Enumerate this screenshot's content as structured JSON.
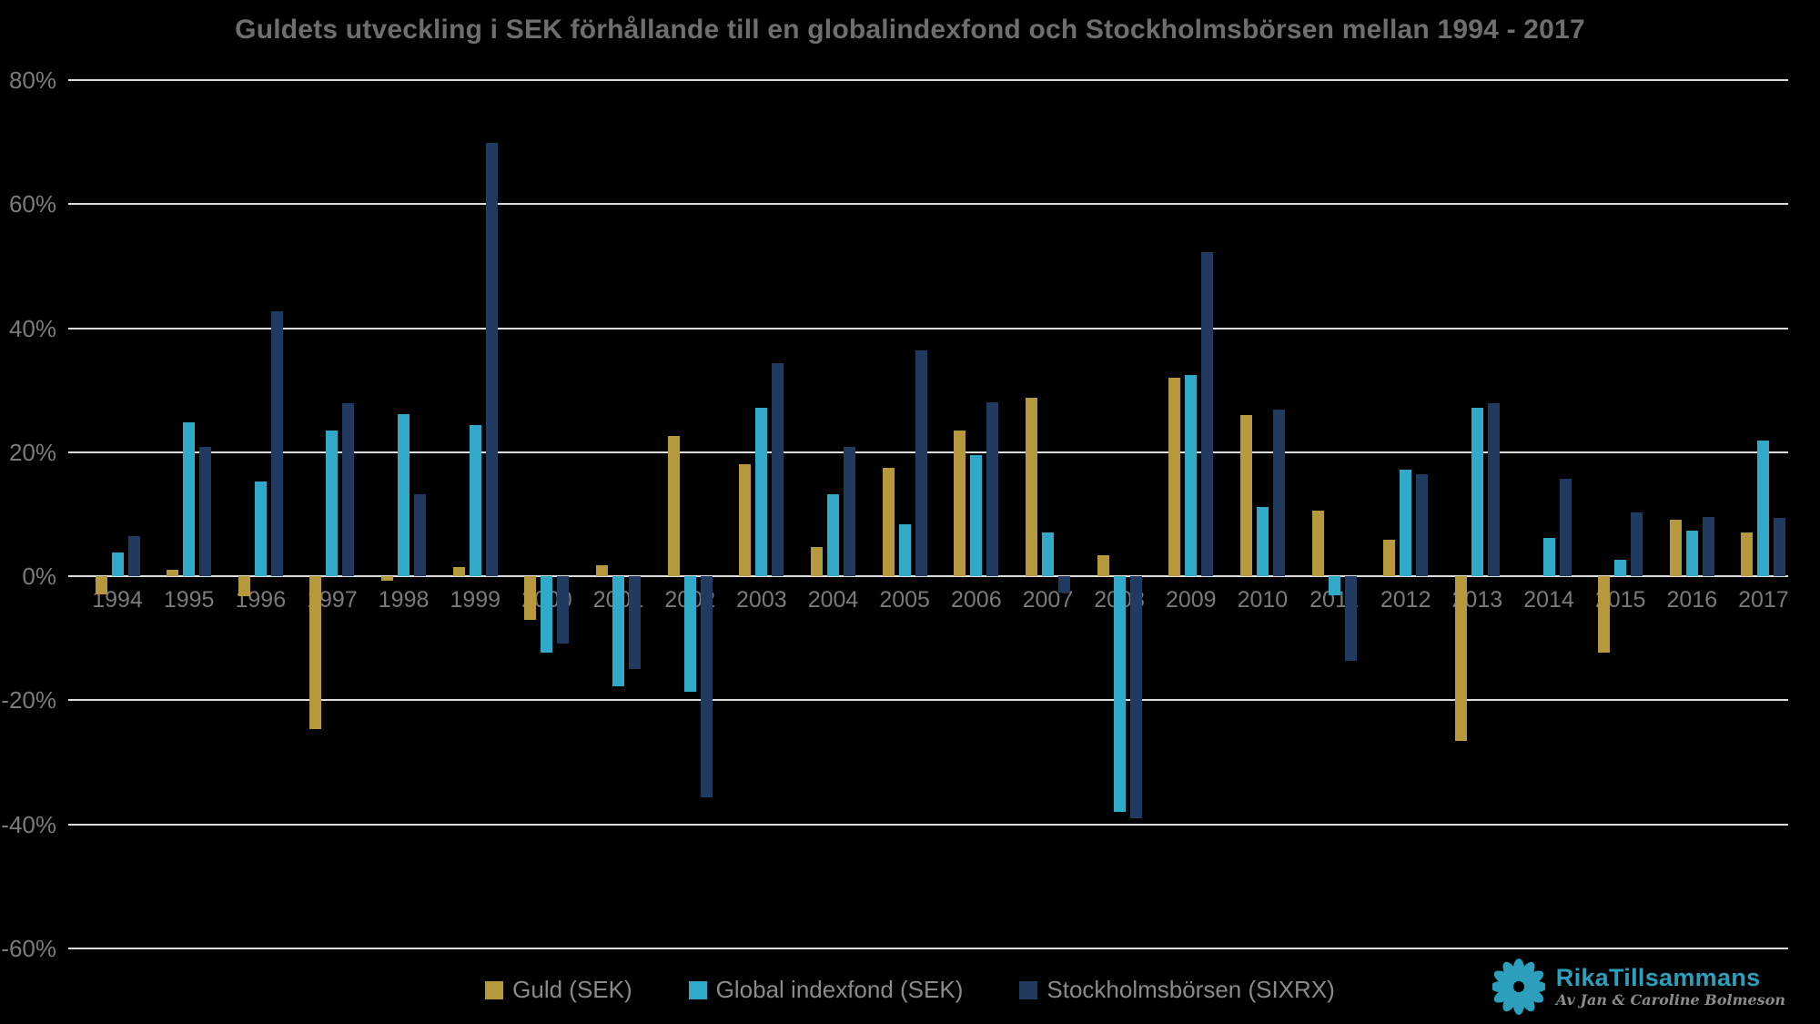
{
  "title": "Guldets utveckling i SEK förhållande till en globalindexfond och Stockholmsbörsen mellan 1994 - 2017",
  "colors": {
    "gold": "#B5993C",
    "cyan": "#31A9C9",
    "navy": "#203A60",
    "gridline": "#DEDEDE",
    "title_text": "#6E6E6E",
    "axis_text": "#7A7A7A",
    "legend_text": "#8A8A8A",
    "background": "#000000",
    "logo_teal": "#2B9FBC"
  },
  "chart_data": {
    "type": "bar",
    "categories": [
      "1994",
      "1995",
      "1996",
      "1997",
      "1998",
      "1999",
      "2000",
      "2001",
      "2002",
      "2003",
      "2004",
      "2005",
      "2006",
      "2007",
      "2008",
      "2009",
      "2010",
      "2011",
      "2012",
      "2013",
      "2014",
      "2015",
      "2016",
      "2017"
    ],
    "series": [
      {
        "name": "Guld (SEK)",
        "color_key": "gold",
        "values": [
          -2.9,
          1.0,
          -3.2,
          -24.7,
          -0.7,
          1.4,
          -7.0,
          1.7,
          22.6,
          18.1,
          4.7,
          17.5,
          23.5,
          28.8,
          3.4,
          32.0,
          26.0,
          10.5,
          5.9,
          -26.6,
          0.0,
          -12.3,
          9.1,
          7.0
        ]
      },
      {
        "name": "Global indexfond (SEK)",
        "color_key": "cyan",
        "values": [
          3.8,
          24.8,
          15.2,
          23.5,
          26.1,
          24.3,
          -12.4,
          -17.7,
          -18.6,
          27.1,
          13.2,
          8.4,
          19.5,
          7.0,
          -38.0,
          32.5,
          11.1,
          -3.1,
          17.2,
          27.2,
          6.2,
          2.7,
          7.4,
          21.9
        ]
      },
      {
        "name": "Stockholmsbörsen (SIXRX)",
        "color_key": "navy",
        "values": [
          6.5,
          20.8,
          42.7,
          27.9,
          13.2,
          69.8,
          -10.9,
          -15.0,
          -35.7,
          34.3,
          20.8,
          36.4,
          28.0,
          -2.7,
          -39.0,
          52.2,
          26.8,
          -13.6,
          16.4,
          27.9,
          15.7,
          10.3,
          9.6,
          9.4
        ]
      }
    ],
    "title": "Guldets utveckling i SEK förhållande till en globalindexfond och Stockholmsbörsen mellan 1994 - 2017",
    "xlabel": "",
    "ylabel": "",
    "ylim": [
      -60,
      80
    ],
    "ytick_step": 20,
    "yticks": [
      80,
      60,
      40,
      20,
      0,
      -20,
      -40,
      -60
    ],
    "ytick_labels": [
      "80%",
      "60%",
      "40%",
      "20%",
      "0%",
      "-20%",
      "-40%",
      "-60%"
    ],
    "grid": true,
    "legend_position": "bottom",
    "x_label_position": "at-zero-line"
  },
  "logo": {
    "brand": "RikaTillsammans",
    "tagline": "Av Jan & Caroline Bolmeson",
    "icon": "flower-icon"
  }
}
